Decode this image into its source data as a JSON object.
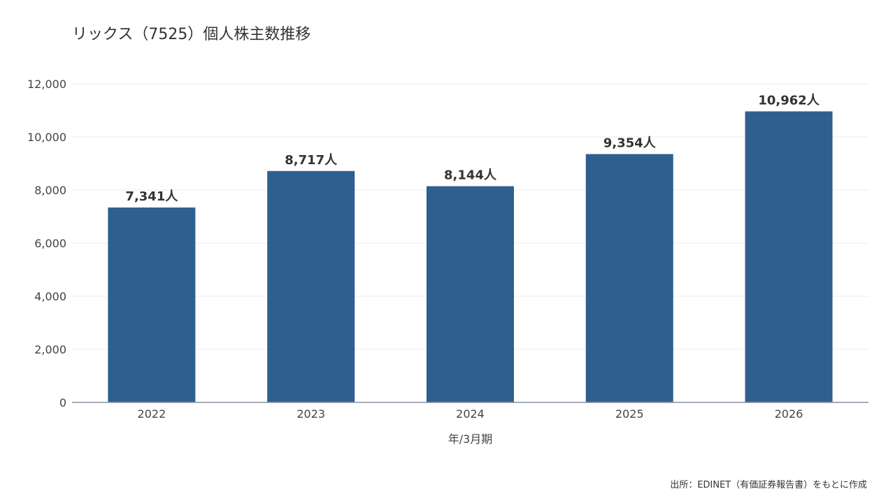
{
  "title": "リックス（7525）個人株主数推移",
  "source": "出所：EDINET（有価証券報告書）をもとに作成",
  "chart_data": {
    "type": "bar",
    "title": "リックス（7525）個人株主数推移",
    "xlabel": "年/3月期",
    "ylabel": "",
    "categories": [
      "2022",
      "2023",
      "2024",
      "2025",
      "2026"
    ],
    "values": [
      7341,
      8717,
      8144,
      9354,
      10962
    ],
    "data_labels": [
      "7,341人",
      "8,717人",
      "8,144人",
      "9,354人",
      "10,962人"
    ],
    "ylim": [
      0,
      12000
    ],
    "yticks": [
      0,
      2000,
      4000,
      6000,
      8000,
      10000,
      12000
    ],
    "ytick_labels": [
      "0",
      "2,000",
      "4,000",
      "6,000",
      "8,000",
      "10,000",
      "12,000"
    ],
    "grid": true,
    "bar_color": "#2e5f8e",
    "grid_color": "#ebebeb",
    "axis_color": "#8a8fa0"
  }
}
